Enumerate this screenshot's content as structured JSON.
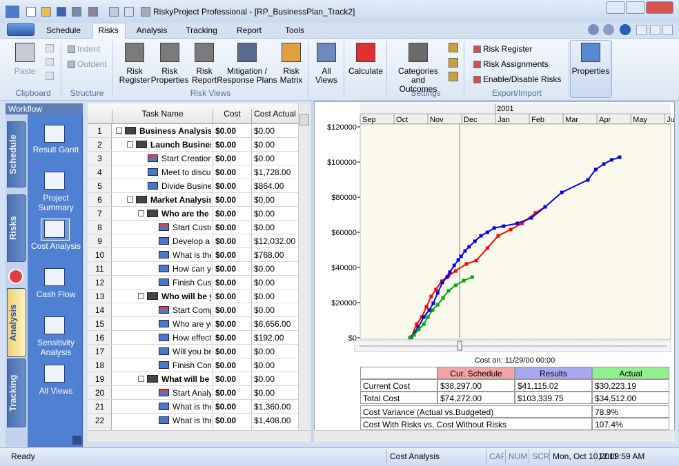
{
  "title_bar": {
    "title": "RiskyProject Professional - [RP_BusinessPlan_Track2]"
  },
  "ribbon": {
    "tabs": [
      "Schedule",
      "Risks",
      "Analysis",
      "Tracking",
      "Report",
      "Tools"
    ],
    "groups": [
      {
        "label": "Clipboard",
        "buttons": [
          "Paste"
        ]
      },
      {
        "label": "Structure",
        "buttons": [
          "Indent",
          "Outdent"
        ]
      },
      {
        "label": "Risk Views",
        "buttons": [
          "Risk Register",
          "Risk Properties",
          "Risk Report",
          "Mitigation / Response Plans",
          "Risk Matrix"
        ]
      },
      {
        "buttons": [
          "All Views"
        ]
      },
      {
        "buttons": [
          "Calculate"
        ]
      },
      {
        "label": "Settings",
        "buttons": [
          "Categories and Outcomes"
        ]
      },
      {
        "label": "Export/Import",
        "buttons": [
          "Risk Register",
          "Risk Assignments",
          "Enable/Disable Risks"
        ]
      },
      {
        "buttons": [
          "Properties"
        ]
      }
    ]
  },
  "workflow": {
    "title": "Workflow",
    "tabs": [
      "Schedule",
      "Risks",
      "Analysis",
      "Tracking"
    ],
    "items": [
      "Result Gantt",
      "Project Summary",
      "Cost Analysis",
      "Cash Flow",
      "Sensitivity Analysis",
      "All Views"
    ]
  },
  "table": {
    "header": [
      "Task Name",
      "Cost",
      "Cost Actual"
    ],
    "rows": [
      [
        "1",
        "Business Analysis",
        "$0.00",
        "$0.00"
      ],
      [
        "2",
        "Launch Busines",
        "$0.00",
        "$0.00"
      ],
      [
        "3",
        "Start Creation",
        "$0.00",
        "$0.00"
      ],
      [
        "4",
        "Meet to discus",
        "$0.00",
        "$1,728.00"
      ],
      [
        "5",
        "Divide Busines",
        "$0.00",
        "$864.00"
      ],
      [
        "6",
        "Market Analysis",
        "$0.00",
        "$0.00"
      ],
      [
        "7",
        "Who are the",
        "$0.00",
        "$0.00"
      ],
      [
        "8",
        "Start Custo",
        "$0.00",
        "$0.00"
      ],
      [
        "9",
        "Develop a c",
        "$0.00",
        "$12,032.00"
      ],
      [
        "10",
        "What is the",
        "$0.00",
        "$768.00"
      ],
      [
        "11",
        "How can y",
        "$0.00",
        "$0.00"
      ],
      [
        "12",
        "Finish Cust",
        "$0.00",
        "$0.00"
      ],
      [
        "13",
        "Who will be y",
        "$0.00",
        "$0.00"
      ],
      [
        "14",
        "Start Comp",
        "$0.00",
        "$0.00"
      ],
      [
        "15",
        "Who are yc",
        "$0.00",
        "$6,656.00"
      ],
      [
        "16",
        "How effect",
        "$0.00",
        "$192.00"
      ],
      [
        "17",
        "Will you be",
        "$0.00",
        "$0.00"
      ],
      [
        "18",
        "Finish Comp",
        "$0.00",
        "$0.00"
      ],
      [
        "19",
        "What will be",
        "$0.00",
        "$0.00"
      ],
      [
        "20",
        "Start Analy",
        "$0.00",
        "$0.00"
      ],
      [
        "21",
        "What is the",
        "$0.00",
        "$1,360.00"
      ],
      [
        "22",
        "What is the",
        "$0.00",
        "$1,408.00"
      ]
    ]
  },
  "chart_data": {
    "type": "line",
    "x_year_label": "2001",
    "xlim": [
      0,
      9.18
    ],
    "xticks": [
      {
        "value": 0,
        "label": "Sep"
      },
      {
        "value": 1,
        "label": "Oct"
      },
      {
        "value": 2,
        "label": "Nov"
      },
      {
        "value": 3,
        "label": "Dec"
      },
      {
        "value": 4,
        "label": "Jan"
      },
      {
        "value": 5,
        "label": "Feb"
      },
      {
        "value": 6,
        "label": "Mar"
      },
      {
        "value": 7,
        "label": "Apr"
      },
      {
        "value": 8,
        "label": "May"
      },
      {
        "value": 9,
        "label": "Ju"
      }
    ],
    "ylim": [
      0,
      120000
    ],
    "yticks": [
      {
        "value": 0,
        "label": "$0"
      },
      {
        "value": 20000,
        "label": "$20000"
      },
      {
        "value": 40000,
        "label": "$40000"
      },
      {
        "value": 60000,
        "label": "$60000"
      },
      {
        "value": 80000,
        "label": "$80000"
      },
      {
        "value": 100000,
        "label": "$100000"
      },
      {
        "value": 120000,
        "label": "$120000"
      }
    ],
    "cursor_x": 2.94,
    "caption": "Cost on: 11/29/00 00:00",
    "series": [
      {
        "color": "#ff0000",
        "x": [
          1.51,
          1.67,
          1.82,
          1.96,
          2.1,
          2.24,
          2.41,
          2.61,
          2.82,
          3.14,
          3.43,
          3.76,
          4.08,
          4.45,
          4.78,
          5.18,
          5.47
        ],
        "values": [
          400,
          7800,
          11800,
          17600,
          23500,
          27500,
          32200,
          35300,
          38000,
          42000,
          43900,
          51000,
          58000,
          61600,
          65100,
          71000,
          74500
        ]
      },
      {
        "color": "#0000ee",
        "x": [
          1.51,
          1.71,
          1.88,
          2.04,
          2.16,
          2.29,
          2.43,
          2.57,
          2.65,
          2.78,
          2.9,
          2.98,
          3.1,
          3.22,
          3.39,
          3.57,
          3.76,
          3.96,
          4.24,
          4.65,
          5.06,
          5.47,
          5.96,
          6.73,
          6.96,
          7.2,
          7.43,
          7.67
        ],
        "values": [
          400,
          5900,
          11800,
          15700,
          19600,
          25500,
          31400,
          34500,
          37300,
          41200,
          44300,
          46300,
          49400,
          51800,
          54900,
          58000,
          60000,
          62400,
          63500,
          65100,
          68200,
          74500,
          82700,
          89800,
          95700,
          98800,
          101200,
          102700
        ]
      },
      {
        "color": "#00aa00",
        "x": [
          1.47,
          1.59,
          1.73,
          1.88,
          2.0,
          2.14,
          2.29,
          2.45,
          2.61,
          2.82,
          3.06,
          3.31
        ],
        "values": [
          0,
          1600,
          4700,
          7800,
          11800,
          15700,
          18800,
          22700,
          26700,
          29800,
          32500,
          34500
        ]
      }
    ]
  },
  "summary_table": {
    "header": [
      "Cur. Schedule",
      "Results",
      "Actual"
    ],
    "rows": [
      [
        "Current Cost",
        "$38,297.00",
        "$41,115.02",
        "$30,223.19"
      ],
      [
        "Total Cost",
        "$74,272.00",
        "$103,339.75",
        "$34,512.00"
      ],
      [
        "Cost Variance (Actual vs.Budgeted)",
        "78.9%"
      ],
      [
        "Cost With Risks vs. Cost Without Risks",
        "107.4%"
      ]
    ]
  },
  "status_bar": {
    "items": [
      "Ready",
      "Cost Analysis",
      "CAP",
      "NUM",
      "SCRL",
      "Mon, Oct 10,2011",
      "12:09:59 AM"
    ]
  }
}
